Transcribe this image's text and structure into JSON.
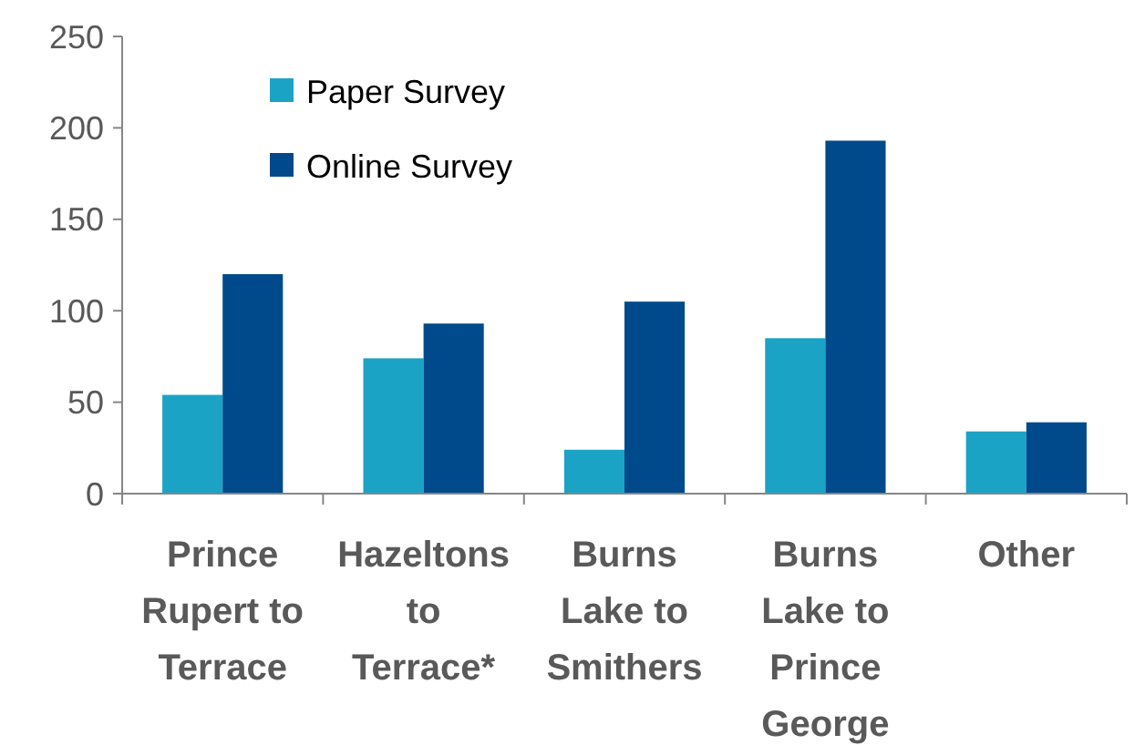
{
  "chart_data": {
    "type": "bar",
    "categories": [
      "Prince Rupert to Terrace",
      "Hazeltons to Terrace*",
      "Burns Lake to Smithers",
      "Burns Lake to Prince George",
      "Other"
    ],
    "series": [
      {
        "name": "Paper Survey",
        "color": "#1ba3c6",
        "values": [
          54,
          74,
          24,
          85,
          34
        ]
      },
      {
        "name": "Online Survey",
        "color": "#004a8c",
        "values": [
          120,
          93,
          105,
          193,
          39
        ]
      }
    ],
    "ylim": [
      0,
      250
    ],
    "yticks": [
      0,
      50,
      100,
      150,
      200,
      250
    ],
    "grid": false,
    "legend": "top left"
  }
}
